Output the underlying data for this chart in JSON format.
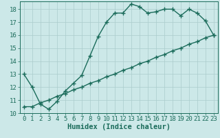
{
  "xlabel": "Humidex (Indice chaleur)",
  "line1_x": [
    0,
    1,
    2,
    3,
    4,
    5,
    6,
    7,
    8,
    9,
    10,
    11,
    12,
    13,
    14,
    15,
    16,
    17,
    18,
    19,
    20,
    21,
    22,
    23
  ],
  "line1_y": [
    13,
    12,
    10.7,
    10.3,
    10.9,
    11.7,
    12.3,
    12.9,
    14.4,
    15.9,
    17.0,
    17.7,
    17.7,
    18.4,
    18.2,
    17.7,
    17.8,
    18.0,
    18.0,
    17.5,
    18.0,
    17.7,
    17.1,
    16.0
  ],
  "line2_x": [
    0,
    1,
    2,
    3,
    4,
    5,
    6,
    7,
    8,
    9,
    10,
    11,
    12,
    13,
    14,
    15,
    16,
    17,
    18,
    19,
    20,
    21,
    22,
    23
  ],
  "line2_y": [
    10.5,
    10.5,
    10.8,
    11.0,
    11.3,
    11.5,
    11.8,
    12.0,
    12.3,
    12.5,
    12.8,
    13.0,
    13.3,
    13.5,
    13.8,
    14.0,
    14.3,
    14.5,
    14.8,
    15.0,
    15.3,
    15.5,
    15.8,
    16.0
  ],
  "line_color": "#1a6b5a",
  "bg_color": "#cce8e8",
  "grid_color": "#aacccc",
  "ylim": [
    10,
    18.6
  ],
  "xlim": [
    -0.5,
    23.5
  ],
  "yticks": [
    10,
    11,
    12,
    13,
    14,
    15,
    16,
    17,
    18
  ],
  "xticks": [
    0,
    1,
    2,
    3,
    4,
    5,
    6,
    7,
    8,
    9,
    10,
    11,
    12,
    13,
    14,
    15,
    16,
    17,
    18,
    19,
    20,
    21,
    22,
    23
  ],
  "marker": "+",
  "markersize": 4,
  "linewidth": 1.0,
  "xlabel_fontsize": 7.5,
  "tick_fontsize": 6.5
}
